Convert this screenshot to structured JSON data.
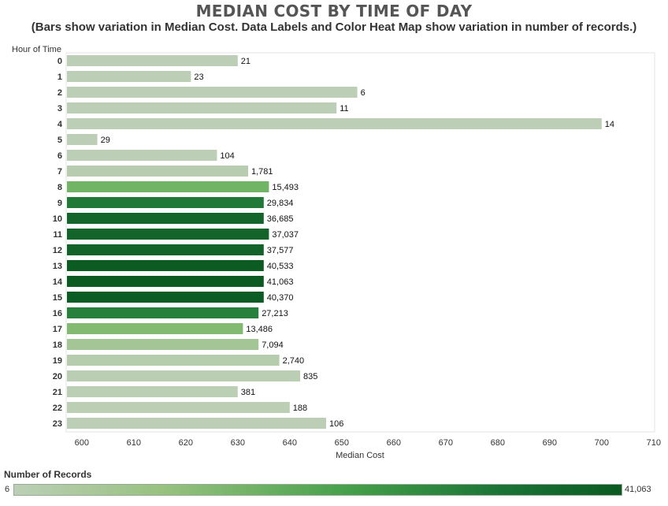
{
  "title": "MEDIAN COST BY TIME OF DAY",
  "subtitle": "(Bars show variation in Median Cost. Data Labels and Color Heat Map show variation in number of records.)",
  "chart_data": {
    "type": "bar",
    "orientation": "horizontal",
    "ylabel": "Hour of Time",
    "xlabel": "Median Cost",
    "xlim": [
      597,
      712
    ],
    "xticks": [
      "600",
      "610",
      "620",
      "630",
      "640",
      "650",
      "660",
      "670",
      "680",
      "690",
      "700",
      "710"
    ],
    "categories": [
      "0",
      "1",
      "2",
      "3",
      "4",
      "5",
      "6",
      "7",
      "8",
      "9",
      "10",
      "11",
      "12",
      "13",
      "14",
      "15",
      "16",
      "17",
      "18",
      "19",
      "20",
      "21",
      "22",
      "23"
    ],
    "values": [
      630,
      621,
      653,
      649,
      700,
      603,
      626,
      632,
      636,
      635,
      635,
      636,
      635,
      635,
      635,
      635,
      634,
      631,
      634,
      638,
      642,
      630,
      640,
      647
    ],
    "records": [
      21,
      23,
      6,
      11,
      14,
      29,
      104,
      1781,
      15493,
      29834,
      36685,
      37037,
      37577,
      40533,
      41063,
      40370,
      27213,
      13486,
      7094,
      2740,
      835,
      381,
      188,
      106
    ],
    "data_labels": [
      "21",
      "23",
      "6",
      "11",
      "14",
      "29",
      "104",
      "1,781",
      "15,493",
      "29,834",
      "36,685",
      "37,037",
      "37,577",
      "40,533",
      "41,063",
      "40,370",
      "27,213",
      "13,486",
      "7,094",
      "2,740",
      "835",
      "381",
      "188",
      "106"
    ],
    "grid": false,
    "colors": {
      "low": "#bccfb6",
      "mid": "#45a04a",
      "high": "#0a5a22"
    },
    "legend": {
      "title": "Number of Records",
      "min_label": "6",
      "max_label": "41,063",
      "placement": "bottom"
    }
  }
}
